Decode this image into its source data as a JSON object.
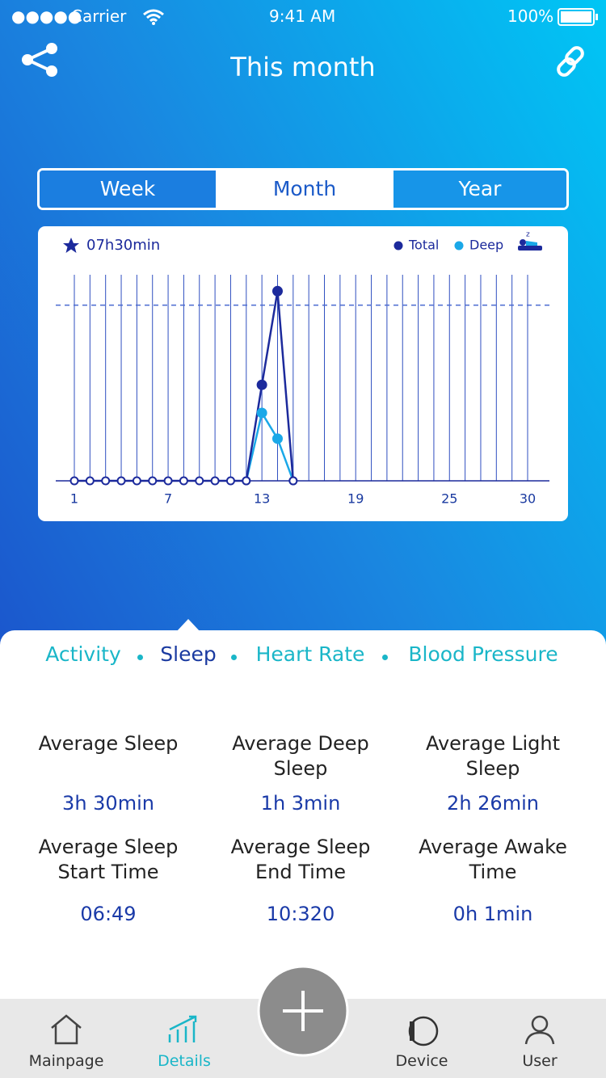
{
  "status_bar": {
    "carrier": "Carrier",
    "time": "9:41 AM",
    "battery": "100%"
  },
  "header": {
    "title": "This month"
  },
  "period_tabs": {
    "items": [
      "Week",
      "Month",
      "Year"
    ]
  },
  "chart_data": {
    "type": "line",
    "summary": "07h30min",
    "x": [
      1,
      2,
      3,
      4,
      5,
      6,
      7,
      8,
      9,
      10,
      11,
      12,
      13,
      14,
      15,
      16,
      17,
      18,
      19,
      20,
      21,
      22,
      23,
      24,
      25,
      26,
      27,
      28,
      29,
      30
    ],
    "series": [
      {
        "name": "Total",
        "color": "#1c2a9c",
        "values": [
          0,
          0,
          0,
          0,
          0,
          0,
          0,
          0,
          0,
          0,
          0,
          0,
          4.1,
          8.1,
          0,
          null,
          null,
          null,
          null,
          null,
          null,
          null,
          null,
          null,
          null,
          null,
          null,
          null,
          null,
          null
        ]
      },
      {
        "name": "Deep",
        "color": "#1aa8e8",
        "values": [
          null,
          null,
          null,
          null,
          null,
          null,
          null,
          null,
          null,
          null,
          null,
          0,
          2.9,
          1.8,
          0,
          null,
          null,
          null,
          null,
          null,
          null,
          null,
          null,
          null,
          null,
          null,
          null,
          null,
          null,
          null
        ]
      }
    ],
    "goal": 7.5,
    "xlim": [
      1,
      30
    ],
    "ylim": [
      0,
      8.8
    ],
    "xticks": [
      1,
      7,
      13,
      19,
      25,
      30
    ],
    "grid": true
  },
  "sections": {
    "items": [
      "Activity",
      "Sleep",
      "Heart Rate",
      "Blood Pressure"
    ]
  },
  "stats": [
    {
      "label": "Average Sleep",
      "value": "3h 30min"
    },
    {
      "label": "Average Deep Sleep",
      "value": "1h 3min"
    },
    {
      "label": "Average Light Sleep",
      "value": "2h 26min"
    },
    {
      "label": "Average Sleep Start Time",
      "value": "06:49"
    },
    {
      "label": "Average Sleep End Time",
      "value": "10:320"
    },
    {
      "label": "Average Awake Time",
      "value": "0h 1min"
    }
  ],
  "tab_bar": {
    "items": [
      "Mainpage",
      "Details",
      "Device",
      "User"
    ]
  }
}
